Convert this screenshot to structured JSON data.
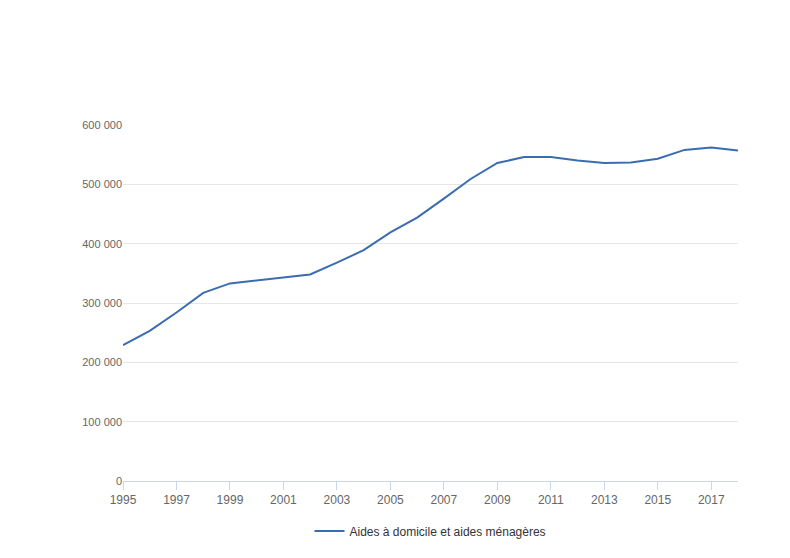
{
  "chart_data": {
    "type": "line",
    "x": [
      1995,
      1996,
      1997,
      1998,
      1999,
      2000,
      2001,
      2002,
      2003,
      2004,
      2005,
      2006,
      2007,
      2008,
      2009,
      2010,
      2011,
      2012,
      2013,
      2014,
      2015,
      2016,
      2017,
      2018
    ],
    "series": [
      {
        "name": "Aides à domicile et aides ménagères",
        "color": "#3a6db0",
        "values": [
          229000,
          253000,
          284000,
          317000,
          333000,
          338000,
          344000,
          348000,
          368000,
          389000,
          419000,
          444000,
          476000,
          509000,
          536000,
          546000,
          546000,
          540000,
          536000,
          537000,
          543000,
          558000,
          562000,
          557000
        ]
      }
    ],
    "xlim": [
      1995,
      2018
    ],
    "xticks": [
      1995,
      1997,
      1999,
      2001,
      2003,
      2005,
      2007,
      2009,
      2011,
      2013,
      2015,
      2017
    ],
    "ylim": [
      0,
      600000
    ],
    "yticks": [
      0,
      {
        "value": 100000,
        "label": "100 000"
      },
      {
        "value": 200000,
        "label": "200 000"
      },
      {
        "value": 300000,
        "label": "300 000"
      },
      {
        "value": 400000,
        "label": "400 000"
      },
      {
        "value": 500000,
        "label": "500 000"
      },
      {
        "value": 600000,
        "label": "600 000"
      }
    ],
    "grid": true,
    "legend": "bottom"
  }
}
